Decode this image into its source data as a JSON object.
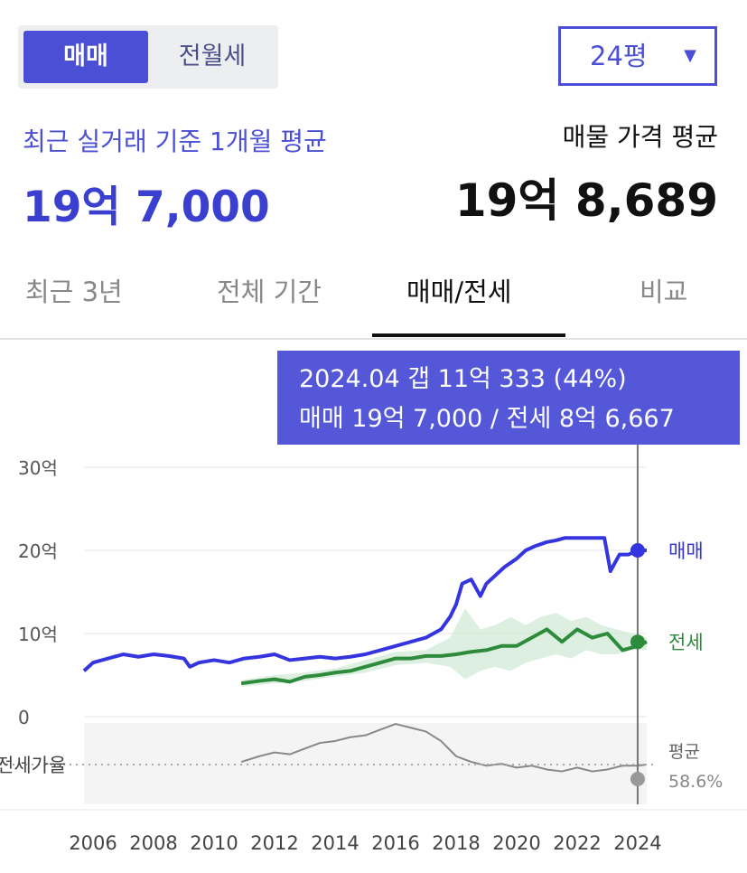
{
  "deal_tabs": {
    "active": "매매",
    "inactive": "전월세"
  },
  "size_select": {
    "value": "24평",
    "caret": "▼"
  },
  "summary": {
    "recent_label": "최근 실거래 기준 1개월 평균",
    "recent_value": "19억 7,000",
    "listing_label": "매물 가격 평균",
    "listing_value": "19억 8,689"
  },
  "period_tabs": [
    "최근 3년",
    "전체 기간",
    "매매/전세",
    "비교"
  ],
  "tooltip": {
    "line1": "2024.04  갭 11억 333 (44%)",
    "line2": "매매 19억 7,000 / 전세 8억 6,667"
  },
  "colors": {
    "accent": "#4b4fd6",
    "sale": "#3535e0",
    "jeonse": "#2e8b3c",
    "ratio": "#888888",
    "band": "#cde8d3"
  },
  "chart_data": {
    "type": "line",
    "y_ticks": [
      "30억",
      "20억",
      "10억",
      "0"
    ],
    "ylim": [
      0,
      30
    ],
    "x_ticks": [
      "2006",
      "2008",
      "2010",
      "2012",
      "2014",
      "2016",
      "2018",
      "2020",
      "2022",
      "2024"
    ],
    "xlim": [
      2005.7,
      2024.3
    ],
    "series": [
      {
        "name": "매매",
        "unit": "억",
        "x": [
          2005.7,
          2006.0,
          2006.5,
          2007.0,
          2007.5,
          2008.0,
          2008.5,
          2009.0,
          2009.2,
          2009.5,
          2010.0,
          2010.5,
          2011.0,
          2011.5,
          2012.0,
          2012.5,
          2013.0,
          2013.5,
          2014.0,
          2014.5,
          2015.0,
          2015.5,
          2016.0,
          2016.5,
          2017.0,
          2017.5,
          2017.8,
          2018.0,
          2018.2,
          2018.5,
          2018.8,
          2019.0,
          2019.3,
          2019.6,
          2020.0,
          2020.3,
          2020.6,
          2021.0,
          2021.3,
          2021.6,
          2022.0,
          2022.3,
          2022.6,
          2022.9,
          2023.1,
          2023.4,
          2023.7,
          2024.0,
          2024.3
        ],
        "y": [
          5.5,
          6.5,
          7.0,
          7.5,
          7.2,
          7.5,
          7.3,
          7.0,
          6.0,
          6.5,
          6.8,
          6.5,
          7.0,
          7.2,
          7.5,
          6.8,
          7.0,
          7.2,
          7.0,
          7.2,
          7.5,
          8.0,
          8.5,
          9.0,
          9.5,
          10.5,
          12.0,
          13.5,
          16.0,
          16.5,
          14.5,
          16.0,
          17.0,
          18.0,
          19.0,
          20.0,
          20.5,
          21.0,
          21.2,
          21.5,
          21.5,
          21.5,
          21.5,
          21.5,
          17.5,
          19.5,
          19.5,
          20.0,
          20.0
        ]
      },
      {
        "name": "전세",
        "unit": "억",
        "x": [
          2010.9,
          2011.5,
          2012.0,
          2012.5,
          2013.0,
          2013.5,
          2014.0,
          2014.5,
          2015.0,
          2015.5,
          2016.0,
          2016.5,
          2017.0,
          2017.5,
          2018.0,
          2018.5,
          2019.0,
          2019.5,
          2020.0,
          2020.5,
          2021.0,
          2021.5,
          2022.0,
          2022.5,
          2023.0,
          2023.5,
          2024.0,
          2024.3
        ],
        "y": [
          4.0,
          4.3,
          4.5,
          4.2,
          4.8,
          5.0,
          5.3,
          5.5,
          6.0,
          6.5,
          7.0,
          7.0,
          7.3,
          7.3,
          7.5,
          7.8,
          8.0,
          8.5,
          8.5,
          9.5,
          10.5,
          9.0,
          10.5,
          9.5,
          10.0,
          8.0,
          8.5,
          9.0
        ]
      },
      {
        "name": "전세가율",
        "unit": "%",
        "x": [
          2010.9,
          2011.5,
          2012.0,
          2012.5,
          2013.0,
          2013.5,
          2014.0,
          2014.5,
          2015.0,
          2015.5,
          2016.0,
          2016.5,
          2017.0,
          2017.5,
          2018.0,
          2018.5,
          2019.0,
          2019.5,
          2020.0,
          2020.5,
          2021.0,
          2021.5,
          2022.0,
          2022.5,
          2023.0,
          2023.5,
          2024.0,
          2024.3
        ],
        "y": [
          60,
          63,
          65,
          64,
          67,
          70,
          71,
          73,
          74,
          77,
          80,
          78,
          76,
          71,
          63,
          60,
          58,
          59,
          57,
          58,
          56,
          55,
          57,
          55,
          56,
          58,
          58,
          58.6
        ]
      }
    ],
    "end_labels": {
      "sale": "매매",
      "jeonse": "전세",
      "ratio_label": "평균",
      "ratio_value": "58.6%"
    },
    "ratio_row_label": "전세가율",
    "jeonse_band": {
      "x": [
        2010.9,
        2012.0,
        2013.0,
        2014.0,
        2015.0,
        2016.0,
        2017.0,
        2017.8,
        2018.3,
        2018.8,
        2019.3,
        2019.8,
        2020.3,
        2020.8,
        2021.3,
        2021.8,
        2022.3,
        2022.8,
        2023.3,
        2023.8,
        2024.3
      ],
      "low": [
        3.6,
        4.0,
        4.3,
        4.8,
        5.3,
        6.2,
        6.5,
        6.0,
        4.5,
        5.5,
        6.0,
        5.5,
        6.5,
        7.0,
        7.5,
        7.0,
        8.0,
        7.5,
        7.5,
        8.0,
        8.0
      ],
      "high": [
        4.4,
        5.0,
        5.3,
        5.8,
        6.8,
        7.8,
        8.0,
        9.5,
        13.0,
        10.5,
        11.0,
        12.0,
        11.0,
        12.0,
        12.5,
        11.5,
        12.0,
        11.0,
        10.5,
        10.0,
        9.5
      ]
    },
    "cursor": {
      "x": 2024.0
    },
    "grid": "horizontal"
  }
}
